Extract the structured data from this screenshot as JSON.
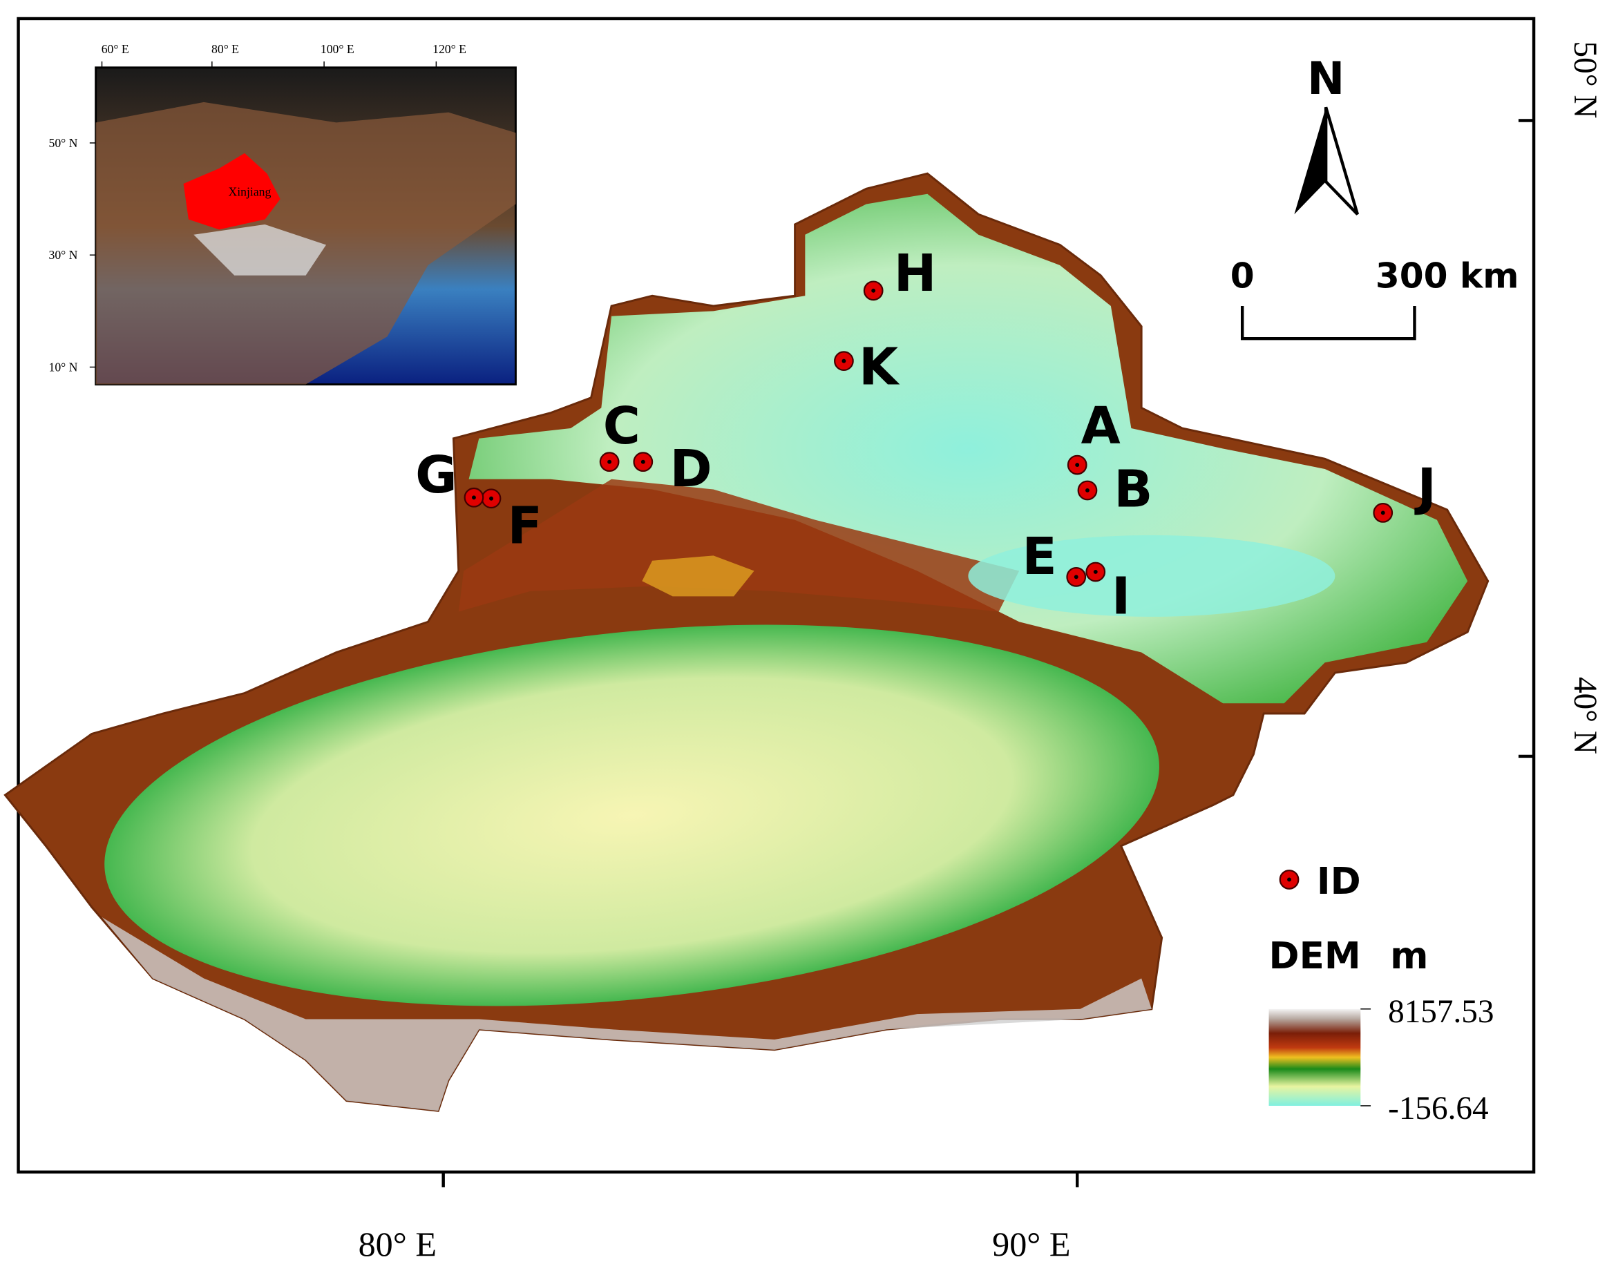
{
  "map": {
    "axes": {
      "bottom": [
        "80° E",
        "90° E"
      ],
      "right": [
        "50° N",
        "40° N"
      ]
    },
    "inset": {
      "top": [
        "60° E",
        "80° E",
        "100° E",
        "120° E"
      ],
      "left": [
        "50° N",
        "30° N",
        "10° N"
      ],
      "region": "Xinjiang"
    },
    "north": "N",
    "scale": {
      "start": "0",
      "end": "300 km"
    },
    "sites": [
      "A",
      "B",
      "C",
      "D",
      "E",
      "F",
      "G",
      "H",
      "I",
      "J",
      "K"
    ],
    "legend": {
      "points": "ID",
      "raster": "DEM",
      "unit": "m",
      "max": "8157.53",
      "min": "-156.64"
    }
  }
}
